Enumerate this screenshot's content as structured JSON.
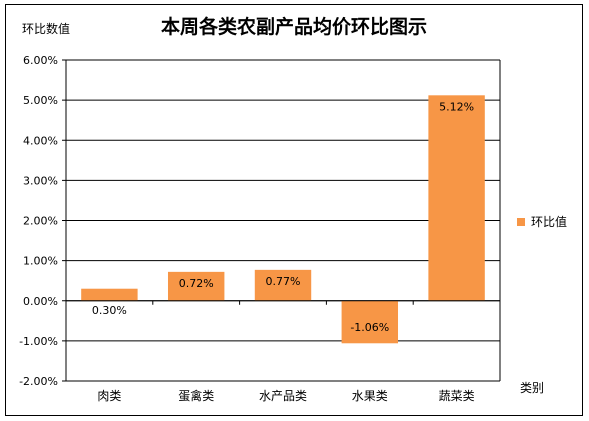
{
  "chart_data": {
    "type": "bar",
    "title": "本周各类农副产品均价环比图示",
    "ylabel": "环比数值",
    "xlabel": "类别",
    "categories": [
      "肉类",
      "蛋禽类",
      "水产品类",
      "水果类",
      "蔬菜类"
    ],
    "series": [
      {
        "name": "环比值",
        "values": [
          0.3,
          0.72,
          0.77,
          -1.06,
          5.12
        ],
        "labels": [
          "0.30%",
          "0.72%",
          "0.77%",
          "-1.06%",
          "5.12%"
        ]
      }
    ],
    "ylim": [
      -2.0,
      6.0
    ],
    "yticks": [
      -2.0,
      -1.0,
      0.0,
      1.0,
      2.0,
      3.0,
      4.0,
      5.0,
      6.0
    ],
    "ytick_labels": [
      "-2.00%",
      "-1.00%",
      "0.00%",
      "1.00%",
      "2.00%",
      "3.00%",
      "4.00%",
      "5.00%",
      "6.00%"
    ],
    "grid": true,
    "legend_position": "right",
    "colors": {
      "bar": "#F79646",
      "grid": "#000000",
      "axis": "#000000",
      "text": "#000000"
    }
  }
}
